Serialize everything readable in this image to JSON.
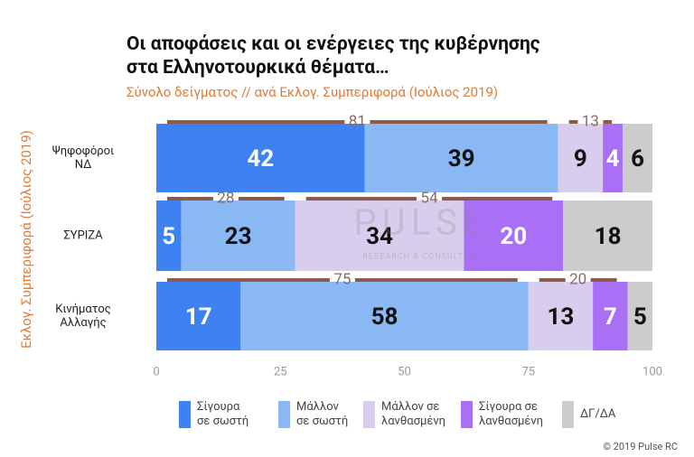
{
  "chart_data": {
    "type": "stacked_bar_horizontal",
    "title": "Οι αποφάσεις και οι ενέργειες της κυβέρνησης\nστα Ελληνοτουρκικά θέματα…",
    "subtitle": "Σύνολο δείγματος // ανά Εκλογ. Συμπεριφορά (Ιούλιος 2019)",
    "y_label": "Εκλογ. Συμπεριφορά (Ιούλιος 2019)",
    "categories": [
      "Ψηφοφόροι\nΝΔ",
      "ΣΥΡΙΖΑ",
      "Κινήματος\nΑλλαγής"
    ],
    "series": [
      {
        "name": "Σίγουρα\nσε σωστή",
        "color": "#3d82f0",
        "values": [
          42,
          5,
          17
        ]
      },
      {
        "name": "Μάλλον\nσε σωστή",
        "color": "#8ab8f5",
        "values": [
          39,
          23,
          58
        ]
      },
      {
        "name": "Μάλλον σε\nλανθασμένη",
        "color": "#d9cdee",
        "values": [
          9,
          34,
          13
        ]
      },
      {
        "name": "Σίγουρα σε\nλανθασμένη",
        "color": "#a970f5",
        "values": [
          4,
          20,
          7
        ]
      },
      {
        "name": "ΔΓ/ΔΑ",
        "color": "#cccccc",
        "values": [
          6,
          18,
          5
        ]
      }
    ],
    "annotations": {
      "correct_totals": [
        81,
        28,
        75
      ],
      "wrong_totals": [
        13,
        54,
        20
      ]
    },
    "xlim": [
      0,
      100
    ],
    "xticks": [
      0,
      25,
      50,
      75,
      100
    ],
    "grid": false,
    "watermark": {
      "brand": "PULSE",
      "tagline": "RESEARCH & CONSULTING"
    },
    "footer": "© 2019 Pulse RC"
  }
}
